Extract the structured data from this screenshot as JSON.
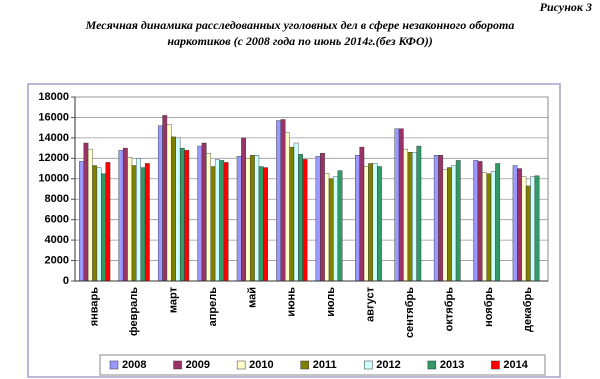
{
  "chart_data": {
    "type": "bar",
    "figure_label": "Рисунок 3",
    "title": [
      "Месячная динамика расследованных уголовных дел в сфере незаконного оборота",
      "наркотиков  (с 2008 года по июнь 2014г.(без КФО))"
    ],
    "categories": [
      "январь",
      "февраль",
      "март",
      "апрель",
      "май",
      "июнь",
      "июль",
      "август",
      "сентябрь",
      "октябрь",
      "ноябрь",
      "декабрь"
    ],
    "series": [
      {
        "name": "2008",
        "color": "#9999ff",
        "values": [
          11700,
          12800,
          15200,
          13200,
          12200,
          15700,
          12200,
          12300,
          14900,
          12300,
          11800,
          11300
        ]
      },
      {
        "name": "2009",
        "color": "#993366",
        "values": [
          13500,
          13000,
          16200,
          13500,
          14000,
          15800,
          12500,
          13100,
          14900,
          12300,
          11700,
          11000
        ]
      },
      {
        "name": "2010",
        "color": "#ffffcc",
        "values": [
          12900,
          12100,
          15300,
          12500,
          12000,
          14500,
          10500,
          11200,
          12900,
          10900,
          10600,
          10200
        ]
      },
      {
        "name": "2011",
        "color": "#808000",
        "values": [
          11300,
          11300,
          14100,
          11200,
          12300,
          13100,
          10000,
          11500,
          12600,
          11100,
          10500,
          9300
        ]
      },
      {
        "name": "2012",
        "color": "#ccffff",
        "values": [
          11100,
          12000,
          14000,
          11900,
          12300,
          13500,
          10200,
          11500,
          12600,
          11300,
          10700,
          10200
        ]
      },
      {
        "name": "2013",
        "color": "#339966",
        "values": [
          10500,
          11100,
          13000,
          11800,
          11200,
          12400,
          10800,
          11200,
          13200,
          11800,
          11500,
          10300
        ]
      },
      {
        "name": "2014",
        "color": "#ff0000",
        "values": [
          11600,
          11500,
          12800,
          11600,
          11100,
          11900,
          null,
          null,
          null,
          null,
          null,
          null
        ]
      }
    ],
    "ylim": [
      0,
      18000
    ],
    "yticks": [
      0,
      2000,
      4000,
      6000,
      8000,
      10000,
      12000,
      14000,
      16000,
      18000
    ],
    "grid": true,
    "legend": "bottom"
  }
}
